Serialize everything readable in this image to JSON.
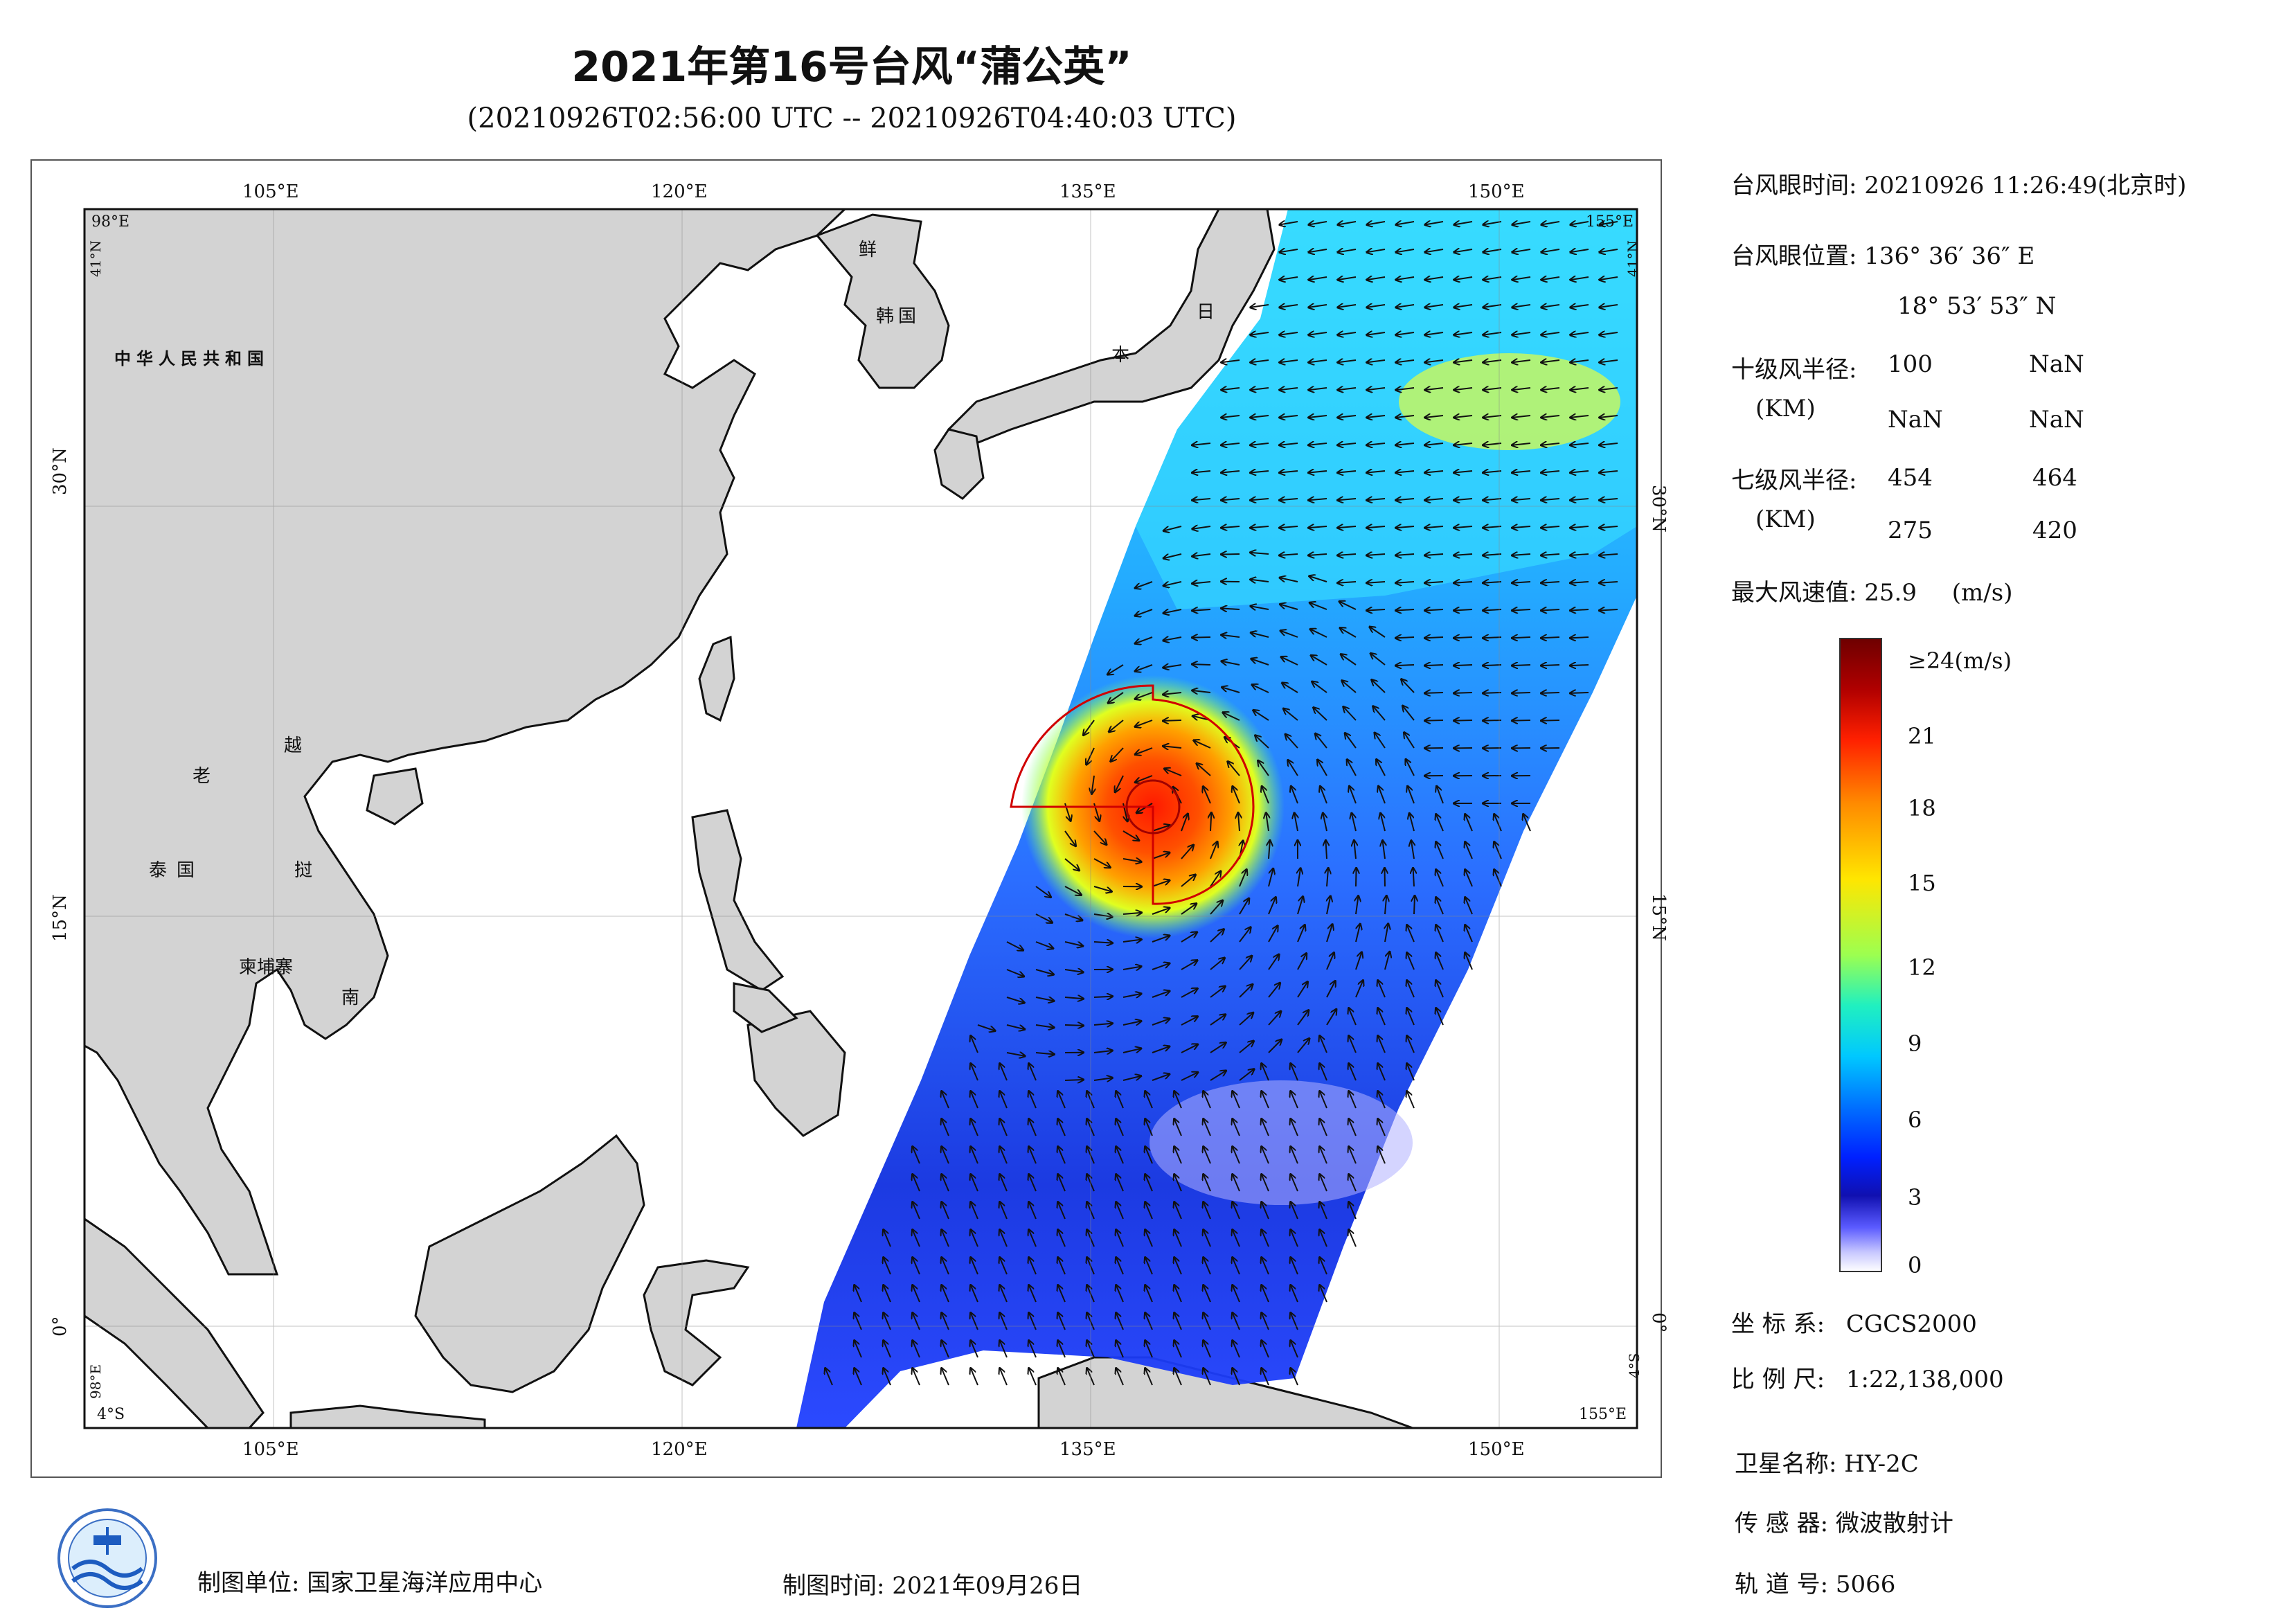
{
  "title": "2021年第16号台风“蒲公英”",
  "subtitle": "(20210926T02:56:00 UTC -- 20210926T04:40:03 UTC)",
  "map": {
    "lon_labels": [
      "105°E",
      "120°E",
      "135°E",
      "150°E"
    ],
    "lat_labels": [
      "30°N",
      "15°N",
      "0°"
    ],
    "corner_labels": {
      "tl_lon": "98°E",
      "tl_lat": "41°N",
      "br_lon": "155°E",
      "br_lat": "4°S",
      "bl_lon": "98°E",
      "bl_lat": "4°S",
      "tr_lon": "155°E",
      "tr_lat": "41°N"
    },
    "land_color": "#d3d3d3",
    "ocean_color": "#ffffff",
    "region_labels": [
      {
        "text": "中华人民共和国",
        "name": "china"
      },
      {
        "text": "鲜",
        "name": "north-korea"
      },
      {
        "text": "韩国",
        "name": "south-korea"
      },
      {
        "text": "日",
        "name": "japan-1"
      },
      {
        "text": "本",
        "name": "japan-2"
      },
      {
        "text": "老",
        "name": "laos"
      },
      {
        "text": "越",
        "name": "vietnam-1"
      },
      {
        "text": "挝",
        "name": "laos-2"
      },
      {
        "text": "泰国",
        "name": "thailand"
      },
      {
        "text": "柬埔寨",
        "name": "cambodia"
      },
      {
        "text": "南",
        "name": "vietnam-2"
      }
    ]
  },
  "typhoon": {
    "eye_time_label": "台风眼时间:",
    "eye_time": "20210926 11:26:49(北京时)",
    "eye_pos_label": "台风眼位置:",
    "eye_lon": "136° 36′ 36″ E",
    "eye_lat": "18° 53′ 53″ N",
    "r10_label": "十级风半径:",
    "r10_unit": "(KM)",
    "r10": [
      "100",
      "NaN",
      "NaN",
      "NaN"
    ],
    "r7_label": "七级风半径:",
    "r7_unit": "(KM)",
    "r7": [
      "454",
      "464",
      "275",
      "420"
    ],
    "max_wind_label": "最大风速值:",
    "max_wind": "25.9",
    "max_wind_unit": "(m/s)",
    "eye_lon_deg": 136.61,
    "eye_lat_deg": 18.9
  },
  "colorbar": {
    "ticks": [
      "≥24(m/s)",
      "21",
      "18",
      "15",
      "12",
      "9",
      "6",
      "3",
      "0"
    ],
    "colors": [
      "#7a0000",
      "#c00000",
      "#ff3000",
      "#ff9000",
      "#ffe000",
      "#b0ff40",
      "#30ffa0",
      "#00e0ff",
      "#0090ff",
      "#0030ff",
      "#1010c0",
      "#6060ff",
      "#d0d0ff",
      "#ffffff"
    ]
  },
  "meta": {
    "crs_label": "坐 标 系:",
    "crs": "CGCS2000",
    "scale_label": "比 例 尺:",
    "scale": "1:22,138,000",
    "satellite_label": "卫星名称:",
    "satellite": "HY-2C",
    "sensor_label": "传 感 器:",
    "sensor": "微波散射计",
    "orbit_label": "轨 道 号:",
    "orbit": "5066",
    "producer_label": "制图单位:",
    "producer": "国家卫星海洋应用中心",
    "date_label": "制图时间:",
    "date": "2021年09月26日"
  }
}
